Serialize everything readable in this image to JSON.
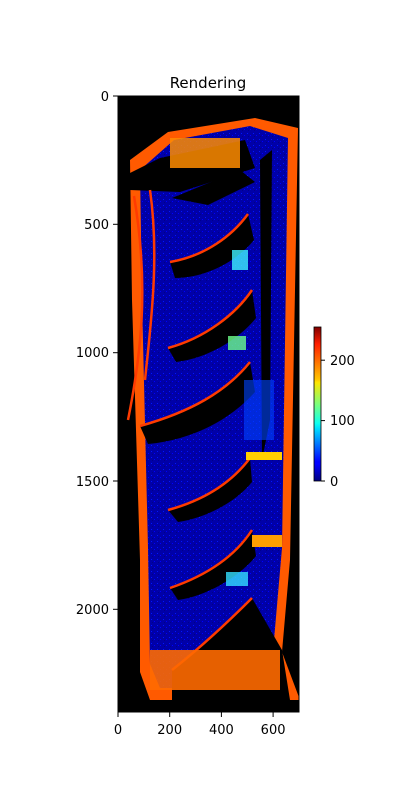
{
  "chart_data": {
    "type": "heatmap",
    "title": "Rendering",
    "colormap": "jet",
    "x_ticks": [
      0,
      200,
      400,
      600
    ],
    "x_tick_labels": [
      "0",
      "200",
      "400",
      "600"
    ],
    "y_ticks": [
      0,
      500,
      1000,
      1500,
      2000
    ],
    "y_tick_labels": [
      "0",
      "500",
      "1000",
      "1500",
      "2000"
    ],
    "xlim": [
      0,
      700
    ],
    "ylim": [
      2400,
      0
    ],
    "colorbar": {
      "ticks": [
        0,
        100,
        200
      ],
      "tick_labels": [
        "0",
        "100",
        "200"
      ],
      "range": [
        0,
        255
      ]
    },
    "image_extent": {
      "width": 700,
      "height": 2400
    },
    "background_value": 0
  },
  "colors": {
    "background": "#000000",
    "low": "#00008f",
    "high": "#800000"
  }
}
